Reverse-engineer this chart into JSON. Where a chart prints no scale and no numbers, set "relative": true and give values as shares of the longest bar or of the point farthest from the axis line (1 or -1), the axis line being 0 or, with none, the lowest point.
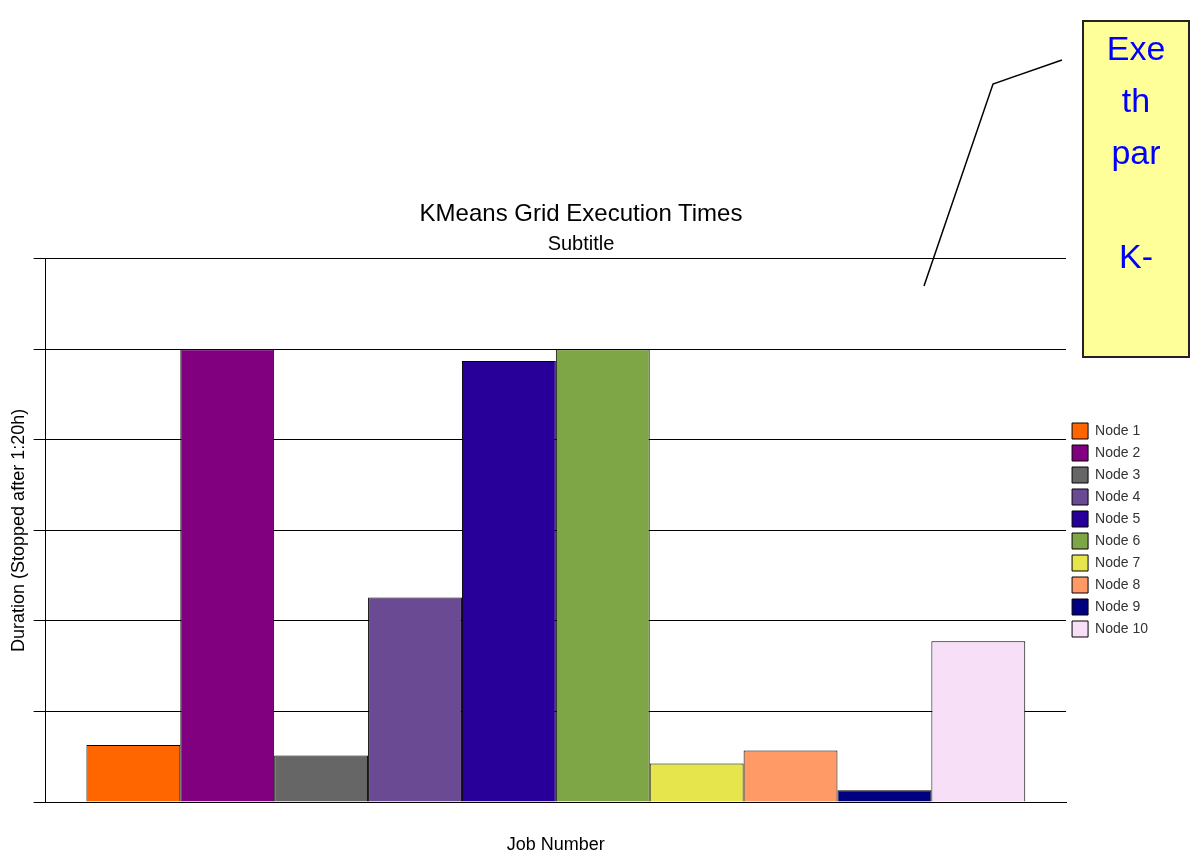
{
  "chart_data": {
    "type": "bar",
    "title": "KMeans Grid Execution Times",
    "subtitle": "Subtitle",
    "xlabel": "Job Number",
    "ylabel": "Duration (Stopped after 1:20h)",
    "categories": [
      null
    ],
    "relative": true,
    "grid": "y",
    "legend": "right",
    "annotations": [
      "Exe\nth\npar\n\nK-"
    ],
    "series": [
      {
        "name": "Node 1",
        "color": "#ff6600",
        "values": [
          0.126
        ]
      },
      {
        "name": "Node 2",
        "color": "#800080",
        "values": [
          1
        ]
      },
      {
        "name": "Node 3",
        "color": "#666666",
        "values": [
          0.103
        ]
      },
      {
        "name": "Node 4",
        "color": "#6b4a94",
        "values": [
          0.452
        ]
      },
      {
        "name": "Node 5",
        "color": "#280099",
        "values": [
          0.974
        ]
      },
      {
        "name": "Node 6",
        "color": "#7ea646",
        "values": [
          1
        ]
      },
      {
        "name": "Node 7",
        "color": "#e6e64c",
        "values": [
          0.085
        ]
      },
      {
        "name": "Node 8",
        "color": "#ff9966",
        "values": [
          0.114
        ]
      },
      {
        "name": "Node 9",
        "color": "#000080",
        "values": [
          0.026
        ]
      },
      {
        "name": "Node 10",
        "color": "#f8dff8",
        "values": [
          0.355
        ]
      }
    ]
  }
}
